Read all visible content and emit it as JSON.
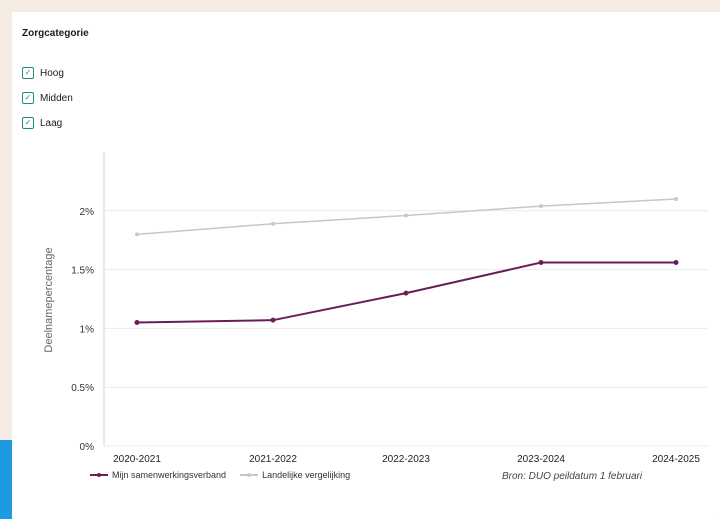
{
  "filter": {
    "title": "Zorgcategorie",
    "items": [
      {
        "label": "Hoog",
        "checked": true
      },
      {
        "label": "Midden",
        "checked": true
      },
      {
        "label": "Laag",
        "checked": true
      }
    ]
  },
  "colors": {
    "primary": "#6b1d5a",
    "comparison": "#c7c7c7",
    "checkbox": "#1e8a80",
    "grid": "#ececec",
    "page": "#f4ece2"
  },
  "chart_data": {
    "type": "line",
    "categories": [
      "2020-2021",
      "2021-2022",
      "2022-2023",
      "2023-2024",
      "2024-2025"
    ],
    "ylabel": "Deelnamepercentage",
    "ylim": [
      0,
      2.5
    ],
    "yticks": [
      {
        "value": 0,
        "label": "0%"
      },
      {
        "value": 0.5,
        "label": "0.5%"
      },
      {
        "value": 1,
        "label": "1%"
      },
      {
        "value": 1.5,
        "label": "1.5%"
      },
      {
        "value": 2,
        "label": "2%"
      }
    ],
    "grid": true,
    "legend_position": "bottom-left",
    "series": [
      {
        "name": "Mijn samenwerkingsverband",
        "values": [
          1.05,
          1.07,
          1.3,
          1.56,
          1.56
        ]
      },
      {
        "name": "Landelijke vergelijking",
        "values": [
          1.8,
          1.89,
          1.96,
          2.04,
          2.1
        ]
      }
    ],
    "source": "Bron: DUO peildatum 1 februari"
  }
}
